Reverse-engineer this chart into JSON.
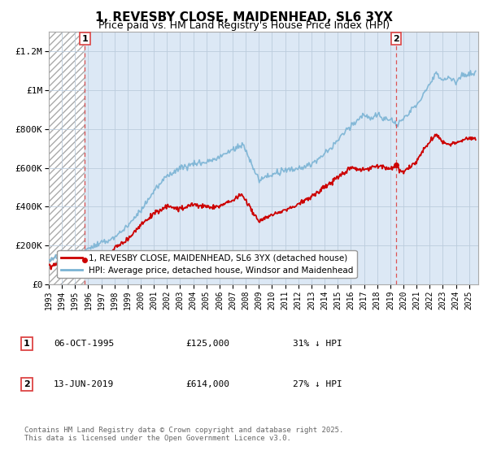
{
  "title": "1, REVESBY CLOSE, MAIDENHEAD, SL6 3YX",
  "subtitle": "Price paid vs. HM Land Registry's House Price Index (HPI)",
  "legend_line1": "1, REVESBY CLOSE, MAIDENHEAD, SL6 3YX (detached house)",
  "legend_line2": "HPI: Average price, detached house, Windsor and Maidenhead",
  "annotation1_date": "06-OCT-1995",
  "annotation1_price": "£125,000",
  "annotation1_hpi": "31% ↓ HPI",
  "annotation2_date": "13-JUN-2019",
  "annotation2_price": "£614,000",
  "annotation2_hpi": "27% ↓ HPI",
  "copyright": "Contains HM Land Registry data © Crown copyright and database right 2025.\nThis data is licensed under the Open Government Licence v3.0.",
  "price_color": "#cc0000",
  "hpi_color": "#7ab3d4",
  "annotation_line_color": "#dd4444",
  "grid_color": "#bbccdd",
  "plot_bg_color": "#dce8f5",
  "hatch_color": "#cccccc",
  "ylim": [
    0,
    1300000
  ],
  "yticks": [
    0,
    200000,
    400000,
    600000,
    800000,
    1000000,
    1200000
  ],
  "ytick_labels": [
    "£0",
    "£200K",
    "£400K",
    "£600K",
    "£800K",
    "£1M",
    "£1.2M"
  ],
  "xmin": 1993,
  "xmax": 2025.7,
  "marker1_x": 1995.75,
  "marker1_y": 125000,
  "marker2_x": 2019.45,
  "marker2_y": 614000
}
